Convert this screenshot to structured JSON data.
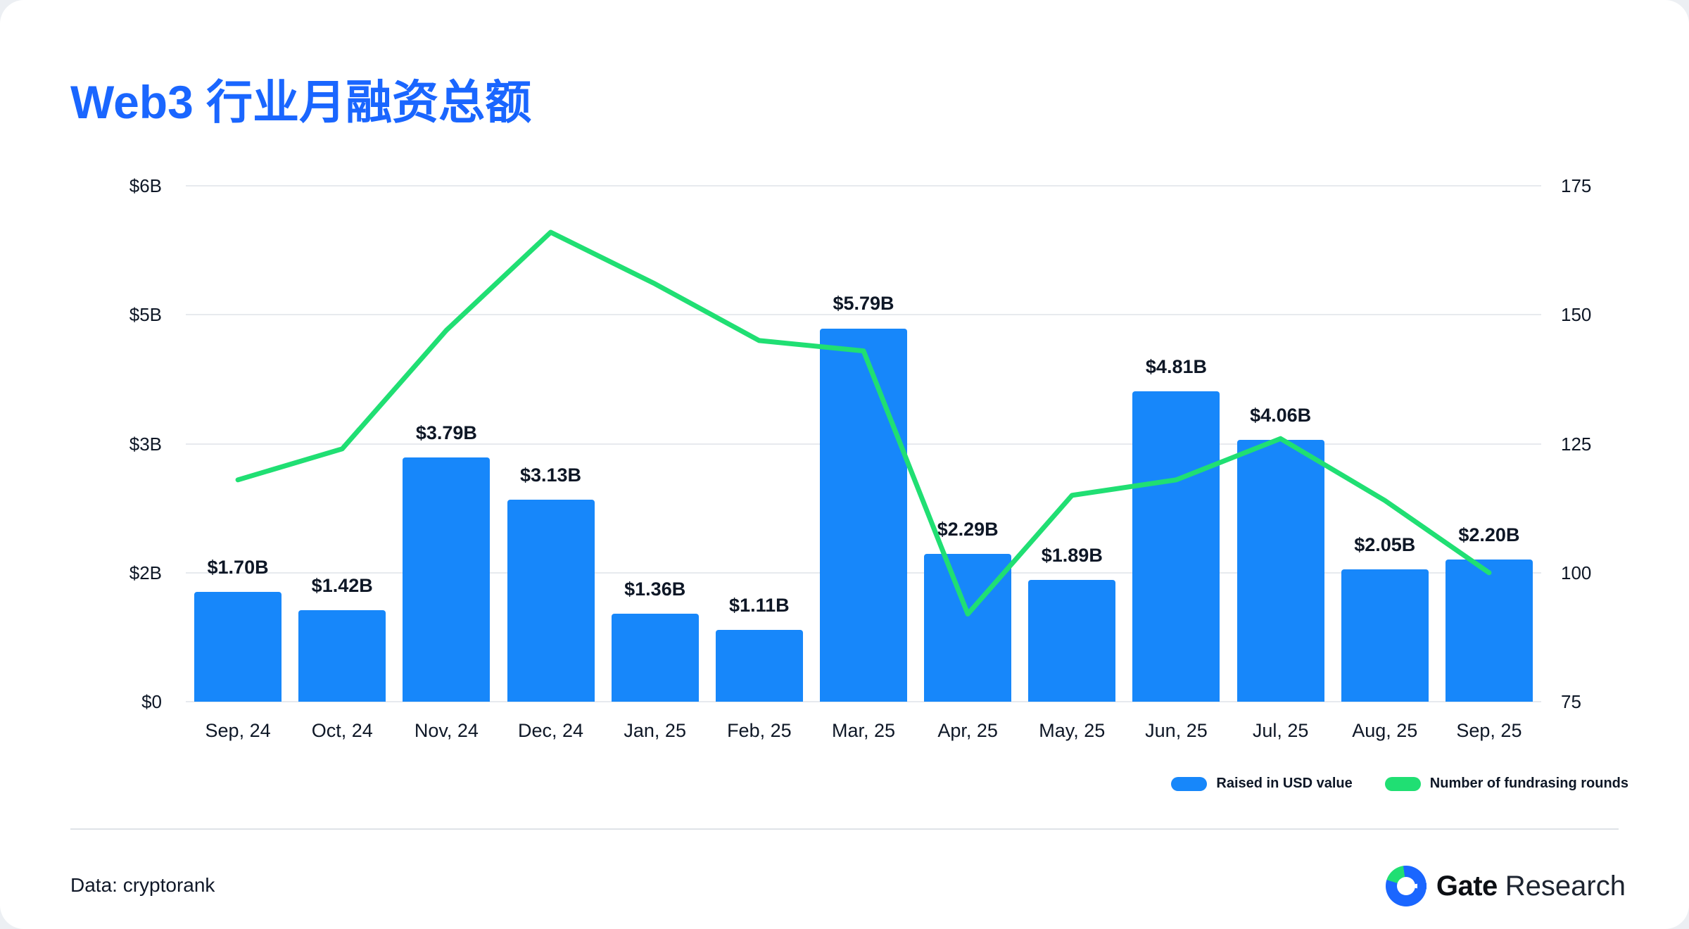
{
  "page": {
    "title": "Web3 行业月融资总额"
  },
  "colors": {
    "title_accent": "#1a66ff",
    "bar": "#1787fa",
    "line": "#20df73",
    "grid": "#e7eaee",
    "text": "#0e1726"
  },
  "legend": [
    {
      "label": "Raised in USD value",
      "color": "#1787fa"
    },
    {
      "label": "Number of fundrasing rounds",
      "color": "#20df73"
    }
  ],
  "footer": {
    "source": "Data: cryptorank",
    "brand_name": "Gate",
    "brand_suffix": "Research"
  },
  "chart_data": {
    "type": "bar",
    "subtype": "bar+line dual axis",
    "title": "Web3 行业月融资总额",
    "categories": [
      "Sep, 24",
      "Oct, 24",
      "Nov, 24",
      "Dec, 24",
      "Jan, 25",
      "Feb, 25",
      "Mar, 25",
      "Apr, 25",
      "May, 25",
      "Jun, 25",
      "Jul, 25",
      "Aug, 25",
      "Sep, 25"
    ],
    "series": [
      {
        "name": "Raised in USD value",
        "type": "bar",
        "axis": "left",
        "unit": "USD billions",
        "values": [
          1.7,
          1.42,
          3.79,
          3.13,
          1.36,
          1.11,
          5.79,
          2.29,
          1.89,
          4.81,
          4.06,
          2.05,
          2.2
        ],
        "labels": [
          "$1.70B",
          "$1.42B",
          "$3.79B",
          "$3.13B",
          "$1.36B",
          "$1.11B",
          "$5.79B",
          "$2.29B",
          "$1.89B",
          "$4.81B",
          "$4.06B",
          "$2.05B",
          "$2.20B"
        ],
        "color": "#1787fa"
      },
      {
        "name": "Number of fundrasing rounds",
        "type": "line",
        "axis": "right",
        "values": [
          118,
          124,
          147,
          166,
          156,
          145,
          143,
          92,
          115,
          118,
          126,
          114,
          100
        ],
        "color": "#20df73"
      }
    ],
    "left_axis": {
      "tick_labels": [
        "$6B",
        "$5B",
        "$3B",
        "$2B",
        "$0"
      ],
      "scale_min": 0,
      "scale_max": 8
    },
    "right_axis": {
      "tick_labels": [
        "175",
        "150",
        "125",
        "100",
        "75"
      ],
      "min": 75,
      "max": 175
    },
    "grid": true,
    "legend_position": "bottom-right"
  }
}
